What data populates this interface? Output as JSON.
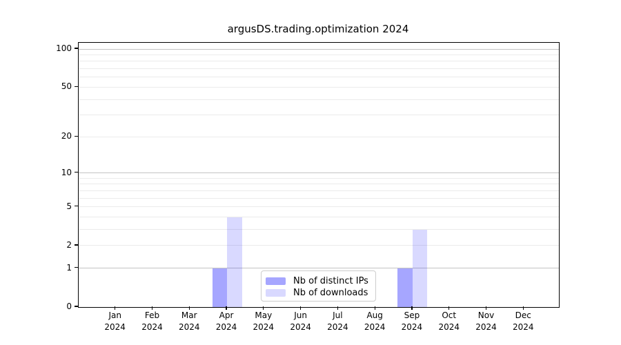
{
  "title": "argusDS.trading.optimization 2024",
  "chart_data": {
    "type": "bar",
    "title": "argusDS.trading.optimization 2024",
    "x_categories": [
      {
        "month": "Jan",
        "year": "2024"
      },
      {
        "month": "Feb",
        "year": "2024"
      },
      {
        "month": "Mar",
        "year": "2024"
      },
      {
        "month": "Apr",
        "year": "2024"
      },
      {
        "month": "May",
        "year": "2024"
      },
      {
        "month": "Jun",
        "year": "2024"
      },
      {
        "month": "Jul",
        "year": "2024"
      },
      {
        "month": "Aug",
        "year": "2024"
      },
      {
        "month": "Sep",
        "year": "2024"
      },
      {
        "month": "Oct",
        "year": "2024"
      },
      {
        "month": "Nov",
        "year": "2024"
      },
      {
        "month": "Dec",
        "year": "2024"
      }
    ],
    "series": [
      {
        "name": "Nb of distinct IPs",
        "color": "rgba(0,0,255,0.35)",
        "values": [
          0,
          0,
          0,
          1,
          0,
          0,
          0,
          0,
          1,
          0,
          0,
          0
        ]
      },
      {
        "name": "Nb of downloads",
        "color": "rgba(0,0,255,0.15)",
        "values": [
          0,
          0,
          0,
          4,
          0,
          0,
          0,
          0,
          3,
          0,
          0,
          0
        ]
      }
    ],
    "yscale": "log1p",
    "ylim": [
      0,
      112
    ],
    "yticks": [
      0,
      1,
      2,
      5,
      10,
      20,
      50,
      100
    ],
    "yticks_minor": [
      3,
      4,
      6,
      7,
      8,
      9,
      30,
      40,
      60,
      70,
      80,
      90
    ],
    "grid": true,
    "legend_position": "lower center"
  },
  "colors": {
    "background": "#ffffff",
    "bar_distinct_ips": "rgba(0,0,255,0.35)",
    "bar_downloads": "rgba(0,0,255,0.15)",
    "spine": "#000000",
    "grid_decade": "#c3c3c3",
    "grid_minor": "#ebebeb",
    "legend_border": "#cccccc",
    "text": "#000000"
  }
}
